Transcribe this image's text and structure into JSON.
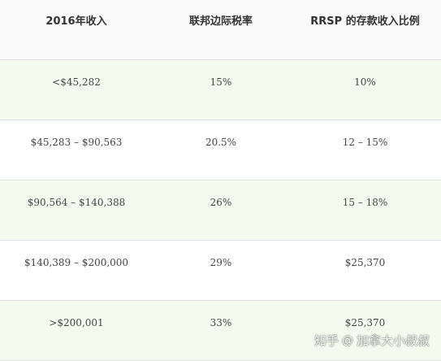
{
  "table": {
    "headers": [
      "2016年收入",
      "联邦边际税率",
      "RRSP 的存款收入比例"
    ],
    "rows": [
      [
        "<$45,282",
        "15%",
        "10%"
      ],
      [
        "$45,283 – $90,563",
        "20.5%",
        "12 – 15%"
      ],
      [
        "$90,564 – $140,388",
        "26%",
        "15 – 18%"
      ],
      [
        "$140,389 – $200,000",
        "29%",
        "$25,370"
      ],
      [
        ">$200,001",
        "33%",
        "$25,370"
      ]
    ]
  },
  "watermark": {
    "site": "知乎",
    "at": "@",
    "author": "加拿大小叔叔"
  },
  "colors": {
    "header_bg": "#fafafa",
    "shaded_row_bg": "#f4fbee",
    "plain_row_bg": "#ffffff",
    "text": "#444444",
    "border": "#e2e2e2"
  }
}
